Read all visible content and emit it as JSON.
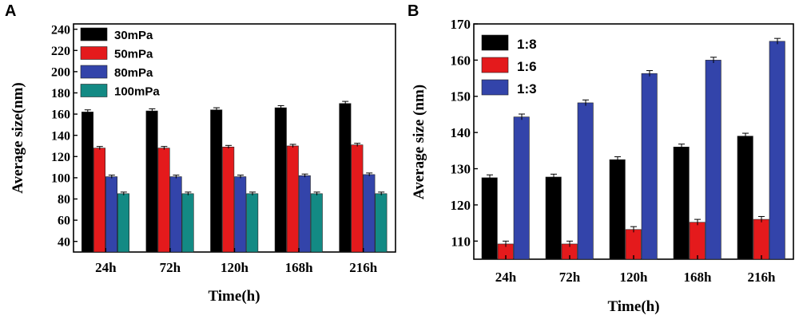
{
  "chart_data": [
    {
      "panel": "A",
      "type": "bar",
      "title": "",
      "xlabel": "Time(h)",
      "ylabel": "Average size(nm)",
      "categories": [
        "24h",
        "72h",
        "120h",
        "168h",
        "216h"
      ],
      "ylim": [
        30,
        245
      ],
      "yticks": [
        40,
        60,
        80,
        100,
        120,
        140,
        160,
        180,
        200,
        220,
        240
      ],
      "legend_position": "top-left",
      "series": [
        {
          "name": "30mPa",
          "color": "#000000",
          "values": [
            162,
            163,
            164,
            166,
            170
          ],
          "errors": [
            2,
            2,
            2,
            2,
            2
          ]
        },
        {
          "name": "50mPa",
          "color": "#e41a1c",
          "values": [
            128,
            128,
            129,
            130,
            131
          ],
          "errors": [
            1.5,
            1.5,
            1.5,
            1.5,
            1.5
          ]
        },
        {
          "name": "80mPa",
          "color": "#3344aa",
          "values": [
            101,
            101,
            101,
            102,
            103
          ],
          "errors": [
            1.5,
            1.5,
            1.5,
            1.5,
            1.5
          ]
        },
        {
          "name": "100mPa",
          "color": "#138a84",
          "values": [
            85,
            85,
            85,
            85,
            85
          ],
          "errors": [
            1.5,
            1.5,
            1.5,
            1.5,
            1.5
          ]
        }
      ]
    },
    {
      "panel": "B",
      "type": "bar",
      "title": "",
      "xlabel": "Time(h)",
      "ylabel": "Average size (nm)",
      "categories": [
        "24h",
        "72h",
        "120h",
        "168h",
        "216h"
      ],
      "ylim": [
        105,
        170
      ],
      "yticks": [
        110,
        120,
        130,
        140,
        150,
        160,
        170
      ],
      "legend_position": "top-left",
      "series": [
        {
          "name": "1:8",
          "color": "#000000",
          "values": [
            127.5,
            127.7,
            132.5,
            136,
            139
          ],
          "errors": [
            0.8,
            0.8,
            0.8,
            0.8,
            0.8
          ]
        },
        {
          "name": "1:6",
          "color": "#e41a1c",
          "values": [
            109.2,
            109.2,
            113.2,
            115.2,
            116
          ],
          "errors": [
            0.8,
            0.8,
            0.8,
            0.8,
            0.8
          ]
        },
        {
          "name": "1:3",
          "color": "#3344aa",
          "values": [
            144.3,
            148.2,
            156.3,
            160,
            165.2
          ],
          "errors": [
            0.8,
            0.8,
            0.8,
            0.8,
            0.8
          ]
        }
      ]
    }
  ]
}
